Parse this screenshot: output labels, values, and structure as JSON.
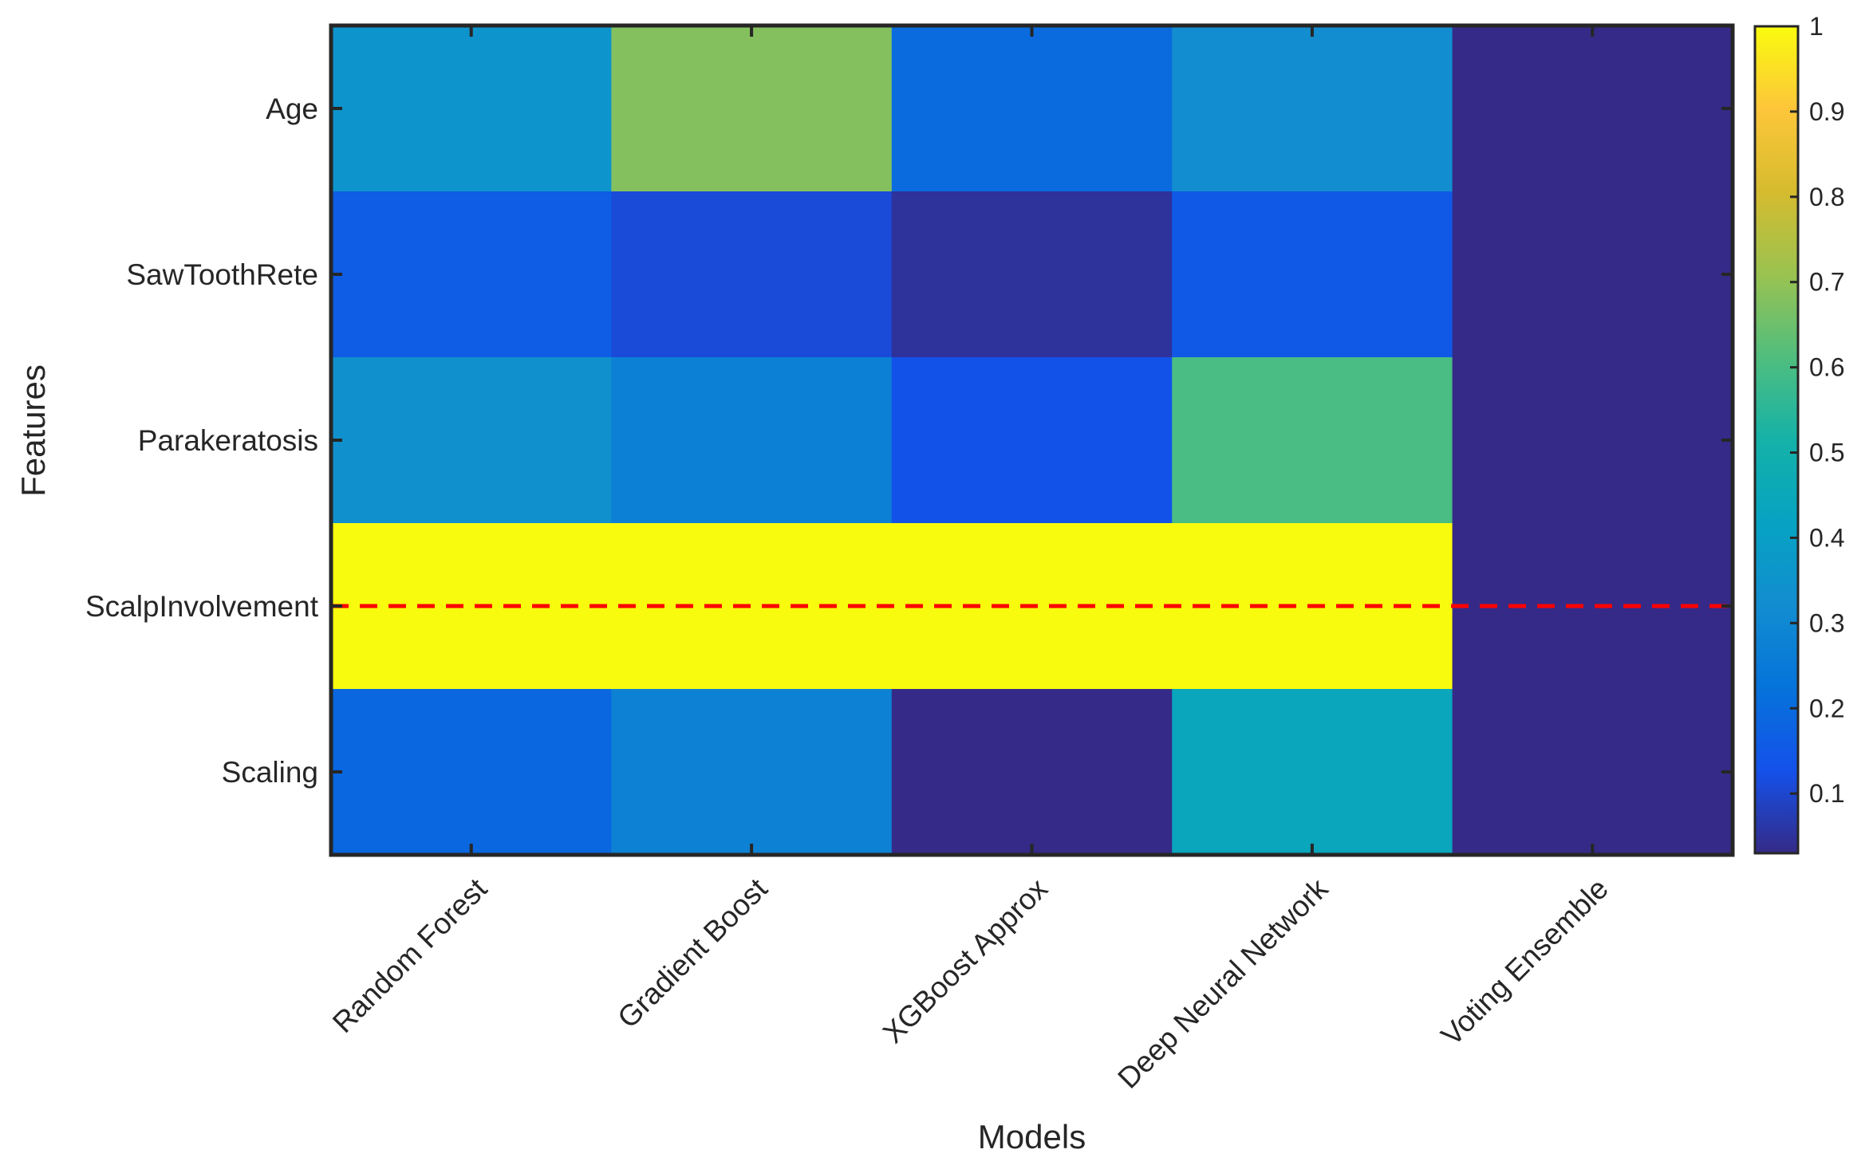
{
  "chart_data": {
    "type": "heatmap",
    "title": "",
    "xlabel": "Models",
    "ylabel": "Features",
    "x_categories": [
      "Random Forest",
      "Gradient Boost",
      "XGBoost Approx",
      "Deep Neural Network",
      "Voting Ensemble"
    ],
    "y_categories": [
      "Age",
      "SawToothRete",
      "Parakeratosis",
      "ScalpInvolvement",
      "Scaling"
    ],
    "values": [
      [
        0.35,
        0.68,
        0.2,
        0.32,
        0.03
      ],
      [
        0.16,
        0.11,
        0.05,
        0.15,
        0.03
      ],
      [
        0.34,
        0.27,
        0.13,
        0.6,
        0.03
      ],
      [
        1.0,
        1.0,
        1.0,
        1.0,
        0.03
      ],
      [
        0.19,
        0.28,
        0.03,
        0.44,
        0.03
      ]
    ],
    "colormap": "parula",
    "colorbar": {
      "range": [
        0.03,
        1
      ],
      "ticks": [
        0.1,
        0.2,
        0.3,
        0.4,
        0.5,
        0.6,
        0.7,
        0.8,
        0.9,
        1
      ],
      "tick_labels": [
        "0.1",
        "0.2",
        "0.3",
        "0.4",
        "0.5",
        "0.6",
        "0.7",
        "0.8",
        "0.9",
        "1"
      ]
    },
    "annotations": [
      {
        "type": "hline",
        "style": "dashed",
        "color": "#ff0000",
        "y_category": "ScalpInvolvement"
      }
    ]
  }
}
